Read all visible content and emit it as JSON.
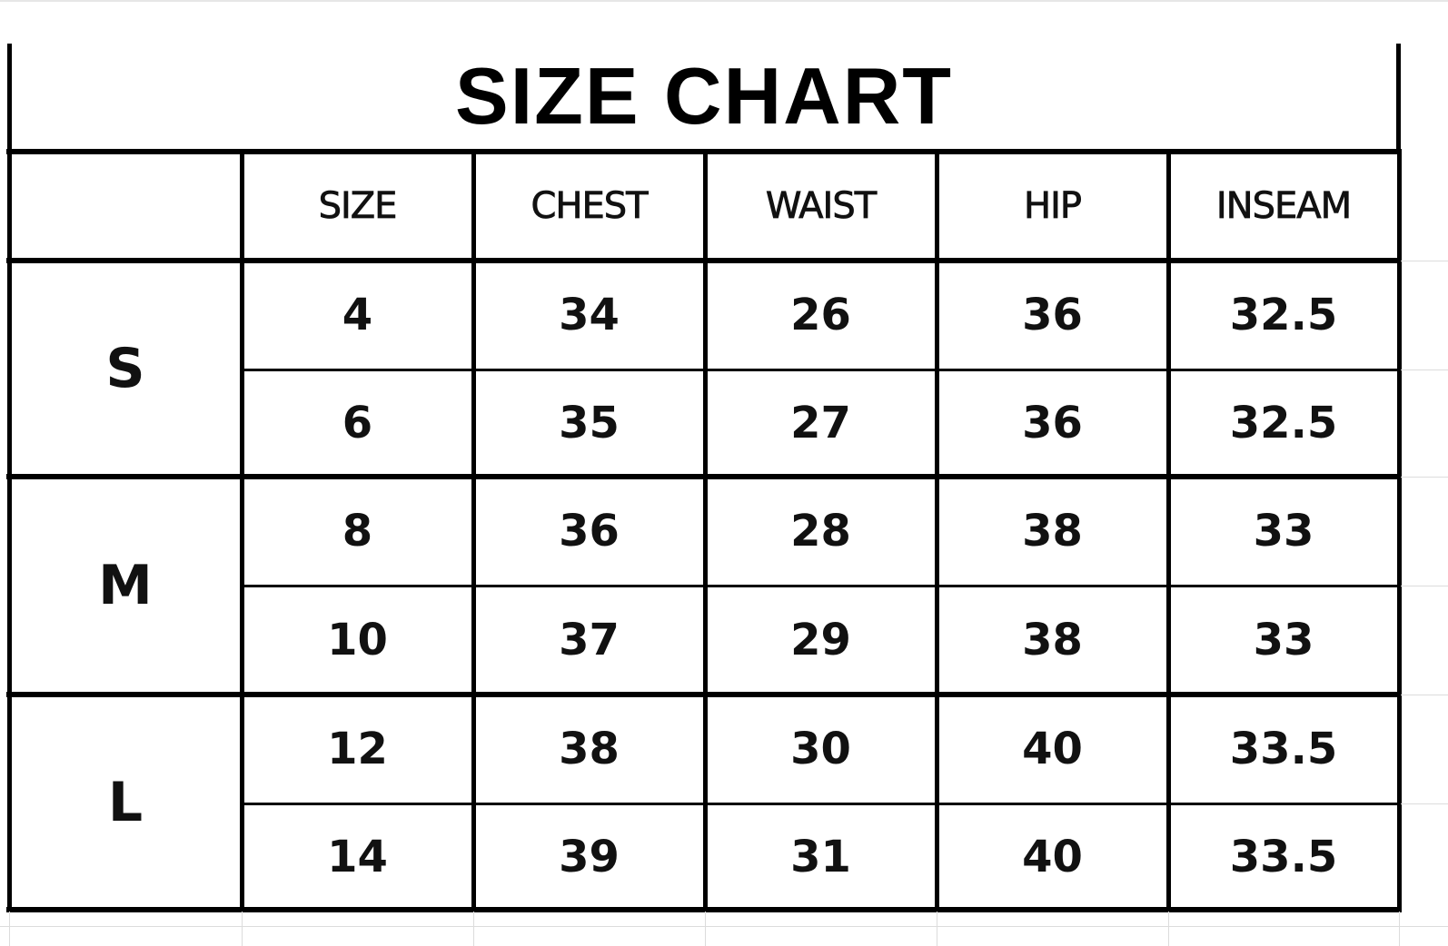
{
  "title": "SIZE CHART",
  "headers": [
    "",
    "SIZE",
    "CHEST",
    "WAIST",
    "HIP",
    "INSEAM"
  ],
  "groups": [
    {
      "label": "S",
      "rows": [
        [
          "4",
          "34",
          "26",
          "36",
          "32.5"
        ],
        [
          "6",
          "35",
          "27",
          "36",
          "32.5"
        ]
      ]
    },
    {
      "label": "M",
      "rows": [
        [
          "8",
          "36",
          "28",
          "38",
          "33"
        ],
        [
          "10",
          "37",
          "29",
          "38",
          "33"
        ]
      ]
    },
    {
      "label": "L",
      "rows": [
        [
          "12",
          "38",
          "30",
          "40",
          "33.5"
        ],
        [
          "14",
          "39",
          "31",
          "40",
          "33.5"
        ]
      ]
    }
  ]
}
